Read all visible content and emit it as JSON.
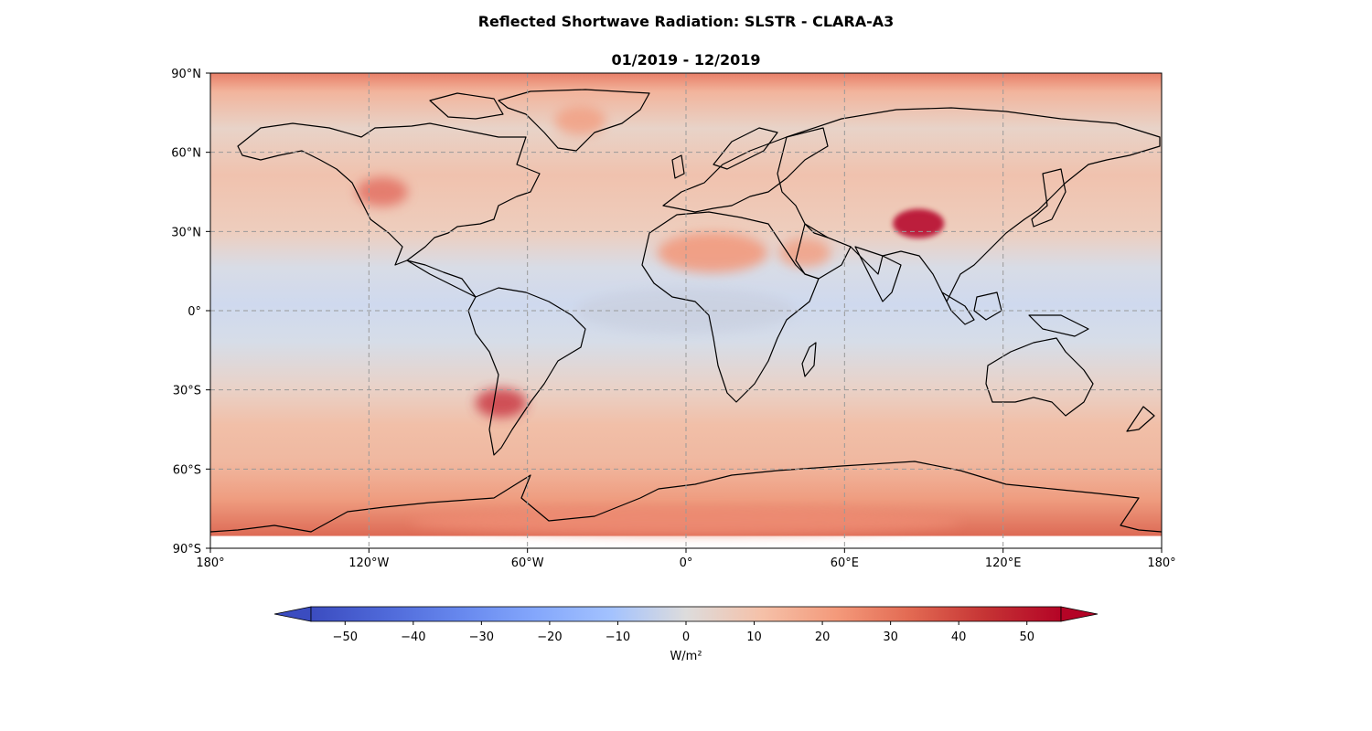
{
  "title": "Reflected Shortwave Radiation: SLSTR - CLARA-A3",
  "subtitle": "01/2019 - 12/2019",
  "map": {
    "projection": "PlateCarree",
    "lon_range": [
      -180,
      180
    ],
    "lat_range": [
      -90,
      90
    ],
    "gridlines": "dashed grey every 60° lon and 30° lat",
    "lon_ticks": [
      {
        "value": -180,
        "label": "180°"
      },
      {
        "value": -120,
        "label": "120°W"
      },
      {
        "value": -60,
        "label": "60°W"
      },
      {
        "value": 0,
        "label": "0°"
      },
      {
        "value": 60,
        "label": "60°E"
      },
      {
        "value": 120,
        "label": "120°E"
      },
      {
        "value": 180,
        "label": "180°"
      }
    ],
    "lat_ticks": [
      {
        "value": 90,
        "label": "90°N"
      },
      {
        "value": 60,
        "label": "60°N"
      },
      {
        "value": 30,
        "label": "30°N"
      },
      {
        "value": 0,
        "label": "0°"
      },
      {
        "value": -30,
        "label": "30°S"
      },
      {
        "value": -60,
        "label": "60°S"
      },
      {
        "value": -90,
        "label": "90°S"
      }
    ],
    "data_coverage_lat": [
      -85,
      90
    ]
  },
  "colorbar": {
    "colormap": "coolwarm",
    "range": [
      -55,
      55
    ],
    "extend": "both",
    "ticks": [
      -50,
      -40,
      -30,
      -20,
      -10,
      0,
      10,
      20,
      30,
      40,
      50
    ],
    "tick_labels": [
      "−50",
      "−40",
      "−30",
      "−20",
      "−10",
      "0",
      "10",
      "20",
      "30",
      "40",
      "50"
    ],
    "label": "W/m²",
    "colors": {
      "low": "#3b4cc0",
      "mid": "#dddddd",
      "high": "#b40426"
    }
  },
  "field_description_regions": [
    {
      "name": "Tibetan Plateau",
      "lon": 88,
      "lat": 33,
      "value": 55
    },
    {
      "name": "Sahara",
      "lon": 10,
      "lat": 22,
      "value": 28
    },
    {
      "name": "Arabian Peninsula",
      "lon": 45,
      "lat": 22,
      "value": 25
    },
    {
      "name": "Andes",
      "lon": -70,
      "lat": -35,
      "value": 45
    },
    {
      "name": "Rocky Mountains",
      "lon": -115,
      "lat": 45,
      "value": 35
    },
    {
      "name": "Greenland",
      "lon": -40,
      "lat": 72,
      "value": 25
    },
    {
      "name": "Tropical oceans",
      "lon": 0,
      "lat": 0,
      "value": -5
    },
    {
      "name": "Antarctica",
      "lon": 0,
      "lat": -80,
      "value": 30
    }
  ]
}
